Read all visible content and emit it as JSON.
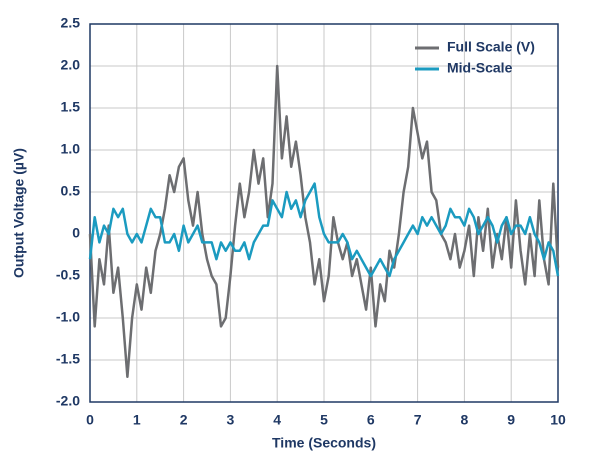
{
  "chart_data": {
    "type": "line",
    "xlabel": "Time (Seconds)",
    "ylabel": "Output Voltage (µV)",
    "x": [
      0,
      0.1,
      0.2,
      0.3,
      0.4,
      0.5,
      0.6,
      0.7,
      0.8,
      0.9,
      1,
      1.1,
      1.2,
      1.3,
      1.4,
      1.5,
      1.6,
      1.7,
      1.8,
      1.9,
      2,
      2.1,
      2.2,
      2.3,
      2.4,
      2.5,
      2.6,
      2.7,
      2.8,
      2.9,
      3,
      3.1,
      3.2,
      3.3,
      3.4,
      3.5,
      3.6,
      3.7,
      3.8,
      3.9,
      4,
      4.1,
      4.2,
      4.3,
      4.4,
      4.5,
      4.6,
      4.7,
      4.8,
      4.9,
      5,
      5.1,
      5.2,
      5.3,
      5.4,
      5.5,
      5.6,
      5.7,
      5.8,
      5.9,
      6,
      6.1,
      6.2,
      6.3,
      6.4,
      6.5,
      6.6,
      6.7,
      6.8,
      6.9,
      7,
      7.1,
      7.2,
      7.3,
      7.4,
      7.5,
      7.6,
      7.7,
      7.8,
      7.9,
      8,
      8.1,
      8.2,
      8.3,
      8.4,
      8.5,
      8.6,
      8.7,
      8.8,
      8.9,
      9,
      9.1,
      9.2,
      9.3,
      9.4,
      9.5,
      9.6,
      9.7,
      9.8,
      9.9,
      10
    ],
    "series": [
      {
        "name": "Full Scale (V)",
        "color": "#6d6e71",
        "values": [
          0,
          -1.1,
          -0.3,
          -0.6,
          0.1,
          -0.7,
          -0.4,
          -1,
          -1.7,
          -1,
          -0.6,
          -0.9,
          -0.4,
          -0.7,
          -0.2,
          0,
          0.3,
          0.7,
          0.5,
          0.8,
          0.9,
          0.4,
          0.1,
          0.5,
          0,
          -0.3,
          -0.5,
          -0.6,
          -1.1,
          -1,
          -0.5,
          0.1,
          0.6,
          0.2,
          0.5,
          1,
          0.6,
          0.9,
          0.2,
          0.6,
          2,
          0.9,
          1.4,
          0.8,
          1.1,
          0.7,
          0.2,
          -0.1,
          -0.6,
          -0.3,
          -0.8,
          -0.5,
          0.2,
          -0.1,
          -0.3,
          -0.1,
          -0.5,
          -0.3,
          -0.6,
          -0.9,
          -0.4,
          -1.1,
          -0.6,
          -0.8,
          -0.2,
          -0.4,
          0,
          0.5,
          0.8,
          1.5,
          1.2,
          0.9,
          1.1,
          0.5,
          0.4,
          0,
          -0.1,
          -0.3,
          0,
          -0.4,
          -0.2,
          0.1,
          -0.5,
          0.2,
          -0.2,
          0.3,
          -0.4,
          0,
          -0.3,
          0.2,
          -0.4,
          0.4,
          -0.2,
          -0.6,
          0,
          -0.5,
          0.4,
          -0.3,
          -0.6,
          0.6,
          -0.4
        ]
      },
      {
        "name": "Mid-Scale",
        "color": "#1b9bc0",
        "values": [
          -0.3,
          0.2,
          -0.1,
          0.1,
          0,
          0.3,
          0.2,
          0.3,
          0,
          -0.1,
          0,
          -0.1,
          0.1,
          0.3,
          0.2,
          0.2,
          -0.1,
          -0.1,
          0,
          -0.2,
          0.1,
          -0.1,
          0,
          0.1,
          -0.1,
          -0.1,
          -0.1,
          -0.3,
          -0.1,
          -0.2,
          -0.1,
          -0.2,
          -0.2,
          -0.1,
          -0.3,
          -0.1,
          0,
          0.1,
          0.1,
          0.4,
          0.3,
          0.2,
          0.5,
          0.3,
          0.4,
          0.2,
          0.4,
          0.5,
          0.6,
          0.2,
          0,
          -0.1,
          -0.1,
          -0.1,
          0,
          -0.1,
          -0.3,
          -0.2,
          -0.3,
          -0.4,
          -0.5,
          -0.4,
          -0.3,
          -0.4,
          -0.5,
          -0.3,
          -0.2,
          -0.1,
          0,
          0.1,
          0,
          0.2,
          0.1,
          0.2,
          0.1,
          0,
          0.1,
          0.3,
          0.2,
          0.2,
          0.1,
          0.3,
          0.2,
          0,
          0.1,
          0.2,
          0.1,
          -0.1,
          0.1,
          0.2,
          0,
          0.1,
          0.1,
          0,
          0.2,
          0,
          -0.1,
          -0.3,
          -0.1,
          -0.2,
          -0.5
        ]
      }
    ],
    "xlim": [
      0,
      10
    ],
    "xticks": [
      0,
      1,
      2,
      3,
      4,
      5,
      6,
      7,
      8,
      9,
      10
    ],
    "ylim": [
      -2,
      2.5
    ],
    "yticks": [
      {
        "value": -2,
        "label": "-2.0"
      },
      -1.5,
      {
        "value": -1,
        "label": "-1.0"
      },
      -0.5,
      0,
      0.5,
      {
        "value": 1,
        "label": "1.0"
      },
      1.5,
      {
        "value": 2,
        "label": "2.0"
      },
      2.5
    ],
    "grid": true,
    "legend": "upper right"
  }
}
